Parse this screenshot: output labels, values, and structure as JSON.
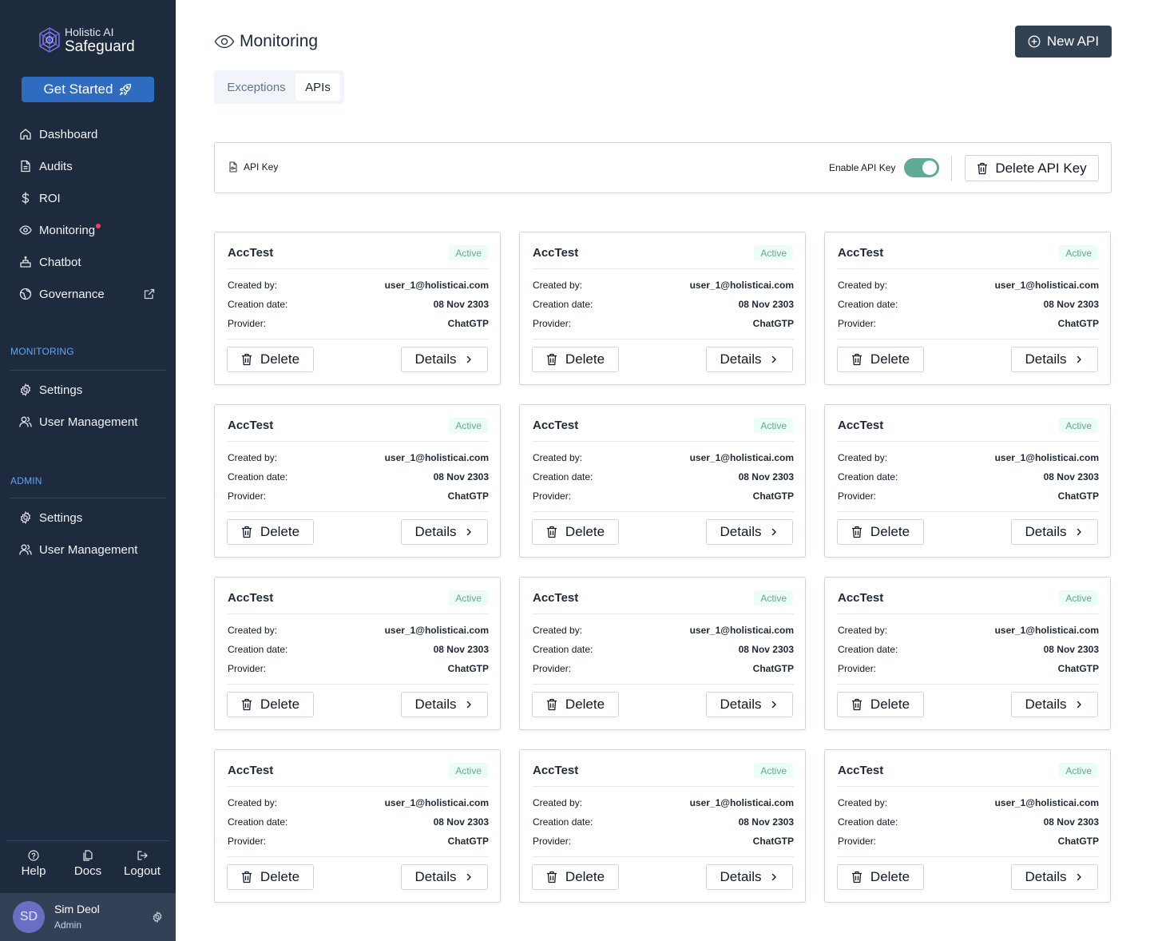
{
  "sidebar": {
    "logo_top": "Holistic AI",
    "logo_bottom": "Safeguard",
    "get_started": "Get Started",
    "nav": {
      "dashboard": "Dashboard",
      "audits": "Audits",
      "roi": "ROI",
      "monitoring": "Monitoring",
      "chatbot": "Chatbot",
      "governance": "Governance"
    },
    "monitoring_section": {
      "title": "MONITORING",
      "settings": "Settings",
      "user_management": "User Management"
    },
    "admin_section": {
      "title": "ADMIN",
      "settings": "Settings",
      "user_management": "User Management"
    },
    "bottom": {
      "help": "Help",
      "docs": "Docs",
      "logout": "Logout"
    },
    "user": {
      "initials": "SD",
      "name": "Sim Deol",
      "role": "Admin"
    }
  },
  "header": {
    "title": "Monitoring",
    "new_api": "New API"
  },
  "tabs": {
    "exceptions": "Exceptions",
    "apis": "APIs"
  },
  "api_key_panel": {
    "label": "API Key",
    "enable_label": "Enable API Key",
    "enabled": true,
    "delete_button": "Delete API Key"
  },
  "card_labels": {
    "created_by": "Created by:",
    "creation_date": "Creation date:",
    "provider": "Provider:",
    "delete": "Delete",
    "details": "Details"
  },
  "cards": [
    {
      "name": "AccTest",
      "status": "Active",
      "created_by": "user_1@holisticai.com",
      "creation_date": "08 Nov 2303",
      "provider": "ChatGTP"
    },
    {
      "name": "AccTest",
      "status": "Active",
      "created_by": "user_1@holisticai.com",
      "creation_date": "08 Nov 2303",
      "provider": "ChatGTP"
    },
    {
      "name": "AccTest",
      "status": "Active",
      "created_by": "user_1@holisticai.com",
      "creation_date": "08 Nov 2303",
      "provider": "ChatGTP"
    },
    {
      "name": "AccTest",
      "status": "Active",
      "created_by": "user_1@holisticai.com",
      "creation_date": "08 Nov 2303",
      "provider": "ChatGTP"
    },
    {
      "name": "AccTest",
      "status": "Active",
      "created_by": "user_1@holisticai.com",
      "creation_date": "08 Nov 2303",
      "provider": "ChatGTP"
    },
    {
      "name": "AccTest",
      "status": "Active",
      "created_by": "user_1@holisticai.com",
      "creation_date": "08 Nov 2303",
      "provider": "ChatGTP"
    },
    {
      "name": "AccTest",
      "status": "Active",
      "created_by": "user_1@holisticai.com",
      "creation_date": "08 Nov 2303",
      "provider": "ChatGTP"
    },
    {
      "name": "AccTest",
      "status": "Active",
      "created_by": "user_1@holisticai.com",
      "creation_date": "08 Nov 2303",
      "provider": "ChatGTP"
    },
    {
      "name": "AccTest",
      "status": "Active",
      "created_by": "user_1@holisticai.com",
      "creation_date": "08 Nov 2303",
      "provider": "ChatGTP"
    },
    {
      "name": "AccTest",
      "status": "Active",
      "created_by": "user_1@holisticai.com",
      "creation_date": "08 Nov 2303",
      "provider": "ChatGTP"
    },
    {
      "name": "AccTest",
      "status": "Active",
      "created_by": "user_1@holisticai.com",
      "creation_date": "08 Nov 2303",
      "provider": "ChatGTP"
    },
    {
      "name": "AccTest",
      "status": "Active",
      "created_by": "user_1@holisticai.com",
      "creation_date": "08 Nov 2303",
      "provider": "ChatGTP"
    }
  ],
  "colors": {
    "sidebar_bg": "#1e2a3e",
    "primary_button": "#2d6cc0",
    "dark_button": "#334155",
    "section_title": "#5ea7f5",
    "active_green": "#5eab96",
    "notification_dot": "#f43f5e"
  }
}
